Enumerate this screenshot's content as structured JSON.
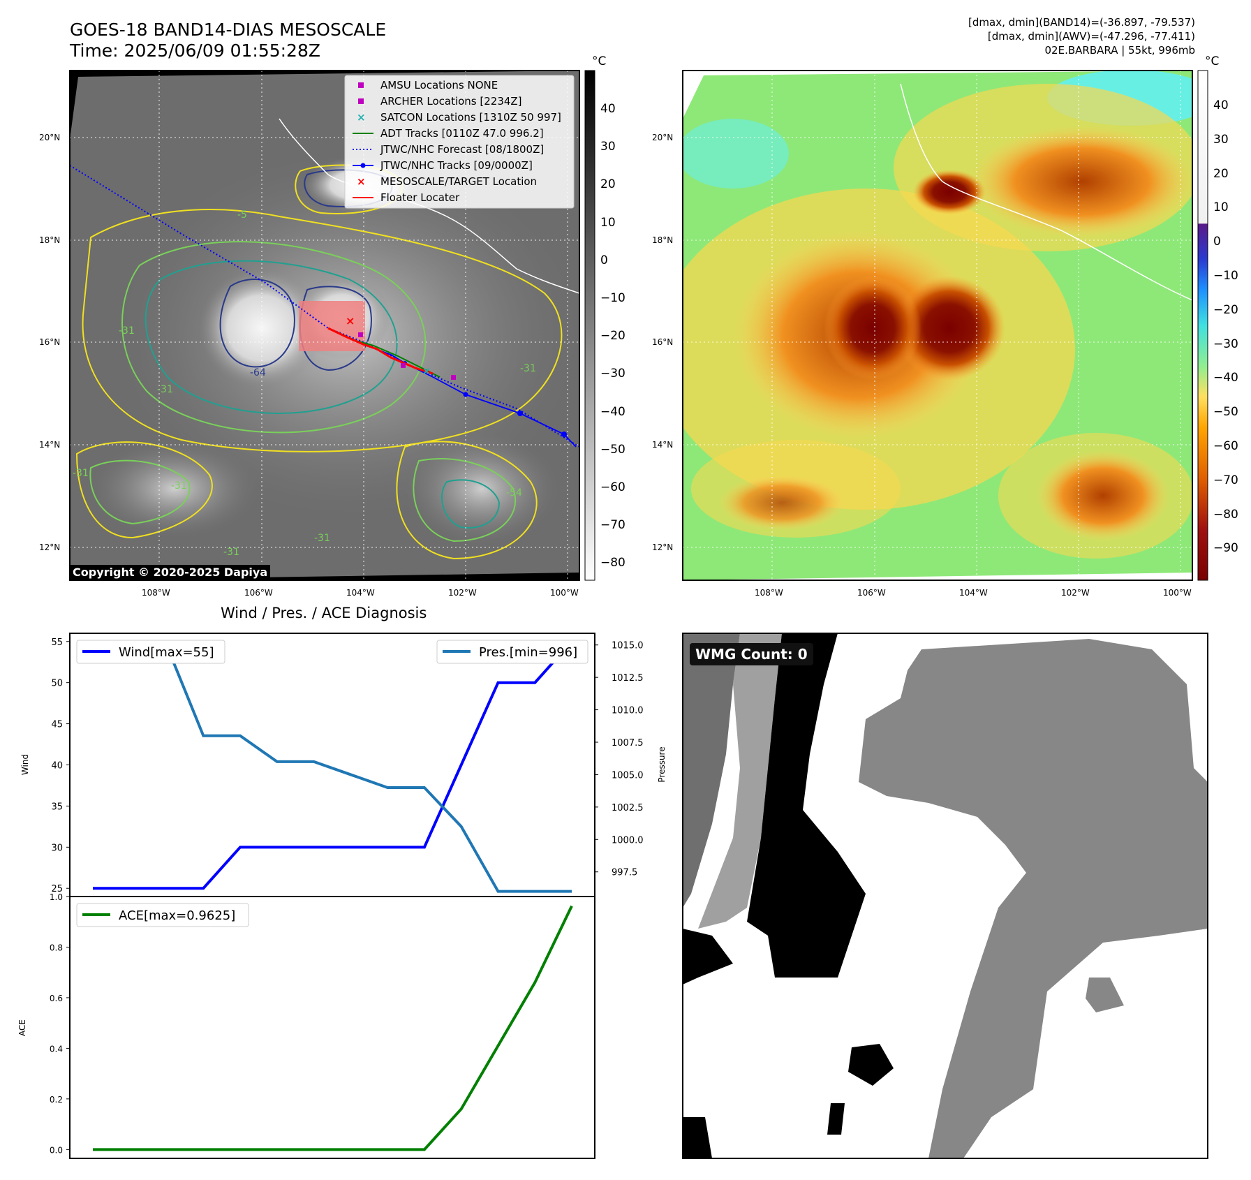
{
  "header": {
    "title_line1": "GOES-18 BAND14-DIAS MESOSCALE",
    "title_line2": "Time: 2025/06/09 01:55:28Z",
    "stats_line1": "[dmax, dmin](BAND14)=(-36.897, -79.537)",
    "stats_line2": "[dmax, dmin](AWV)=(-47.296, -77.411)",
    "stats_line3": "02E.BARBARA | 55kt, 996mb"
  },
  "map": {
    "lon_ticks": [
      "108°W",
      "106°W",
      "104°W",
      "102°W",
      "100°W"
    ],
    "lat_ticks": [
      "20°N",
      "18°N",
      "16°N",
      "14°N",
      "12°N"
    ],
    "copyright": "Copyright © 2020-2025 Dapiya",
    "legend": [
      {
        "label": "AMSU Locations NONE",
        "symbol": "square",
        "color": "#c000c0"
      },
      {
        "label": "ARCHER Locations [2234Z]",
        "symbol": "square",
        "color": "#c000c0"
      },
      {
        "label": "SATCON Locations [1310Z 50 997]",
        "symbol": "x",
        "color": "#20b0b0"
      },
      {
        "label": "ADT Tracks [0110Z 47.0 996.2]",
        "symbol": "line",
        "color": "#008000"
      },
      {
        "label": "JTWC/NHC Forecast [08/1800Z]",
        "symbol": "dotted",
        "color": "#0000ff"
      },
      {
        "label": "JTWC/NHC Tracks [09/0000Z]",
        "symbol": "line-dot",
        "color": "#0000ff"
      },
      {
        "label": "MESOSCALE/TARGET Location",
        "symbol": "x",
        "color": "#ff0000"
      },
      {
        "label": "Floater Locater",
        "symbol": "line",
        "color": "#ff0000"
      }
    ],
    "contour_labels": [
      "-64",
      "-31",
      "-31",
      "-31",
      "-31",
      "-31",
      "-54",
      "-31",
      "-31",
      "-5"
    ]
  },
  "colorbar_left": {
    "unit": "°C",
    "ticks": [
      "40",
      "30",
      "20",
      "10",
      "0",
      "−10",
      "−20",
      "−30",
      "−40",
      "−50",
      "−60",
      "−70",
      "−80"
    ]
  },
  "colorbar_right": {
    "unit": "°C",
    "ticks": [
      "40",
      "30",
      "20",
      "10",
      "0",
      "−10",
      "−20",
      "−30",
      "−40",
      "−50",
      "−60",
      "−70",
      "−80",
      "−90"
    ]
  },
  "wmg": {
    "label": "WMG Count: 0"
  },
  "chart_data": [
    {
      "type": "line",
      "title": "Wind / Pres. / ACE Diagnosis",
      "ylabel": "Wind",
      "y2label": "Pressure",
      "ylim": [
        24,
        56
      ],
      "y2lim": [
        995.6,
        1015.9
      ],
      "yticks": [
        25,
        30,
        35,
        40,
        45,
        50,
        55
      ],
      "y2ticks": [
        "997.5",
        "1000.0",
        "1002.5",
        "1005.0",
        "1007.5",
        "1010.0",
        "1012.5",
        "1015.0"
      ],
      "x": [
        0,
        1,
        2,
        3,
        4,
        5,
        6,
        7,
        8,
        9,
        10,
        11,
        12,
        13
      ],
      "series": [
        {
          "name": "Wind[max=55]",
          "axis": "left",
          "color": "#0000ff",
          "values": [
            25,
            25,
            25,
            25,
            30,
            30,
            30,
            30,
            30,
            30,
            40,
            50,
            50,
            55
          ]
        },
        {
          "name": "Pres.[min=996]",
          "axis": "right",
          "color": "#1f77b4",
          "values": [
            1015,
            1015,
            1015,
            1008,
            1008,
            1006,
            1006,
            1005,
            1004,
            1004,
            1001,
            996,
            996,
            996
          ]
        }
      ]
    },
    {
      "type": "line",
      "ylabel": "ACE",
      "ylim": [
        -0.035,
        1.0
      ],
      "yticks": [
        "0.0",
        "0.2",
        "0.4",
        "0.6",
        "0.8",
        "1.0"
      ],
      "x": [
        0,
        1,
        2,
        3,
        4,
        5,
        6,
        7,
        8,
        9,
        10,
        11,
        12,
        13
      ],
      "series": [
        {
          "name": "ACE[max=0.9625]",
          "color": "#008000",
          "values": [
            0,
            0,
            0,
            0,
            0,
            0,
            0,
            0,
            0,
            0,
            0.16,
            0.41,
            0.66,
            0.9625
          ]
        }
      ]
    }
  ]
}
